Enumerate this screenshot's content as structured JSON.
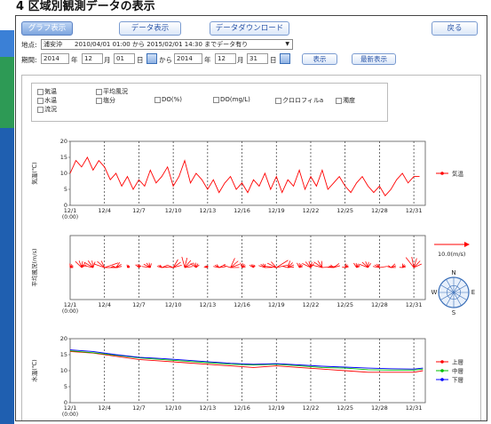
{
  "heading": "4 区域別観測データの表示",
  "nav": {
    "graph": "グラフ表示",
    "data": "データ表示",
    "download": "データダウンロード",
    "back": "戻る"
  },
  "location": {
    "label": "地点:",
    "value": "浦安沖　　2010/04/01 01:00 から 2015/02/01 14:30 までデータ有り",
    "arrow": "▼"
  },
  "period": {
    "label": "期間:",
    "start_year": "2014",
    "year_unit": "年",
    "start_month": "12",
    "month_unit": "月",
    "start_day": "01",
    "day_unit": "日",
    "from": "から",
    "end_year": "2014",
    "end_month": "12",
    "end_day": "31",
    "display_button": "表示",
    "latest_button": "最新表示"
  },
  "checkboxes": {
    "air_temp": "気温",
    "water_temp": "水温",
    "current": "流況",
    "mean_wind": "平均風況",
    "salinity": "塩分",
    "do_pct": "DO(%)",
    "do_mgl": "DO(mg/L)",
    "chlorophyll": "クロロフィルa",
    "turbidity": "濁度"
  },
  "colors": {
    "red": "#ff0000",
    "green": "#00c000",
    "blue": "#0000ff",
    "nav_text": "#2a55a8"
  },
  "chart_data": [
    {
      "type": "line",
      "ylabel": "気温(℃)",
      "ylim": [
        0,
        20
      ],
      "yticks": [
        "20",
        "15",
        "10",
        "5",
        "0"
      ],
      "xticks": [
        "12/1",
        "12/4",
        "12/7",
        "12/10",
        "12/13",
        "12/16",
        "12/19",
        "12/22",
        "12/25",
        "12/28",
        "12/31"
      ],
      "x0_sub": "(0:00)",
      "series": [
        {
          "name": "気温",
          "color": "#ff0000",
          "x": [
            1,
            1.5,
            2,
            2.5,
            3,
            3.5,
            4,
            4.5,
            5,
            5.5,
            6,
            6.5,
            7,
            7.5,
            8,
            8.5,
            9,
            9.5,
            10,
            10.5,
            11,
            11.5,
            12,
            12.5,
            13,
            13.5,
            14,
            14.5,
            15,
            15.5,
            16,
            16.5,
            17,
            17.5,
            18,
            18.5,
            19,
            19.5,
            20,
            20.5,
            21,
            21.5,
            22,
            22.5,
            23,
            23.5,
            24,
            24.5,
            25,
            25.5,
            26,
            26.5,
            27,
            27.5,
            28,
            28.5,
            29,
            29.5,
            30,
            30.5,
            31,
            31.5
          ],
          "values": [
            10,
            14,
            12,
            15,
            11,
            14,
            12,
            8,
            10,
            6,
            9,
            5,
            8,
            6,
            11,
            7,
            9,
            12,
            6,
            9,
            14,
            7,
            10,
            8,
            5,
            8,
            4,
            7,
            9,
            5,
            7,
            4,
            8,
            6,
            10,
            5,
            9,
            4,
            8,
            6,
            11,
            5,
            9,
            6,
            11,
            5,
            7,
            9,
            6,
            4,
            7,
            9,
            6,
            4,
            6,
            3,
            5,
            8,
            10,
            7,
            9,
            9
          ]
        }
      ]
    },
    {
      "type": "scatter",
      "ylabel": "平均風況(m/s)",
      "xticks": [
        "12/1",
        "12/4",
        "12/7",
        "12/10",
        "12/13",
        "12/16",
        "12/19",
        "12/22",
        "12/25",
        "12/28",
        "12/31"
      ],
      "x0_sub": "(0:00)",
      "scale_label": "10.0(m/s)",
      "compass": [
        "N",
        "E",
        "S",
        "W"
      ],
      "series": [
        {
          "name": "平均風況",
          "color": "#ff0000",
          "x": [
            1,
            2,
            3,
            4,
            5,
            6,
            7,
            8,
            9,
            10,
            11,
            12,
            13,
            14,
            15,
            16,
            17,
            18,
            19,
            20,
            21,
            22,
            23,
            24,
            25,
            26,
            27,
            28,
            29,
            30,
            31
          ],
          "values": [
            4,
            8,
            10,
            12,
            6,
            3,
            4,
            7,
            5,
            9,
            11,
            6,
            3,
            6,
            10,
            5,
            4,
            6,
            12,
            7,
            5,
            8,
            11,
            6,
            4,
            5,
            8,
            6,
            5,
            4,
            12
          ]
        }
      ]
    },
    {
      "type": "line",
      "ylabel": "水温(℃)",
      "ylim": [
        0,
        20
      ],
      "yticks": [
        "20",
        "15",
        "10",
        "5",
        "0"
      ],
      "xticks": [
        "12/1",
        "12/4",
        "12/7",
        "12/10",
        "12/13",
        "12/16",
        "12/19",
        "12/22",
        "12/25",
        "12/28",
        "12/31"
      ],
      "x0_sub": "(0:00)",
      "series": [
        {
          "name": "上層",
          "color": "#ff0000",
          "x": [
            1,
            3,
            5,
            7,
            9,
            11,
            13,
            15,
            17,
            19,
            21,
            23,
            25,
            27,
            29,
            31,
            31.8
          ],
          "values": [
            16,
            15.5,
            14.5,
            13.5,
            13,
            12.5,
            12,
            11.5,
            11,
            11.5,
            11,
            10.5,
            10,
            9.5,
            9.5,
            9.5,
            10
          ]
        },
        {
          "name": "中層",
          "color": "#00c000",
          "x": [
            1,
            3,
            5,
            7,
            9,
            11,
            13,
            15,
            17,
            19,
            21,
            23,
            25,
            27,
            29,
            31,
            31.8
          ],
          "values": [
            16.2,
            15.6,
            14.8,
            14,
            13.5,
            13,
            12.5,
            12,
            11.8,
            12,
            11.5,
            11,
            10.8,
            10.3,
            10.2,
            10.2,
            10.5
          ]
        },
        {
          "name": "下層",
          "color": "#0000ff",
          "x": [
            1,
            3,
            5,
            7,
            9,
            11,
            13,
            15,
            17,
            19,
            21,
            23,
            25,
            27,
            29,
            31,
            31.8
          ],
          "values": [
            16.5,
            16,
            15,
            14.2,
            13.8,
            13.3,
            12.8,
            12.3,
            12,
            12.2,
            11.8,
            11.4,
            11.1,
            10.8,
            10.6,
            10.5,
            10.8
          ]
        }
      ]
    }
  ]
}
